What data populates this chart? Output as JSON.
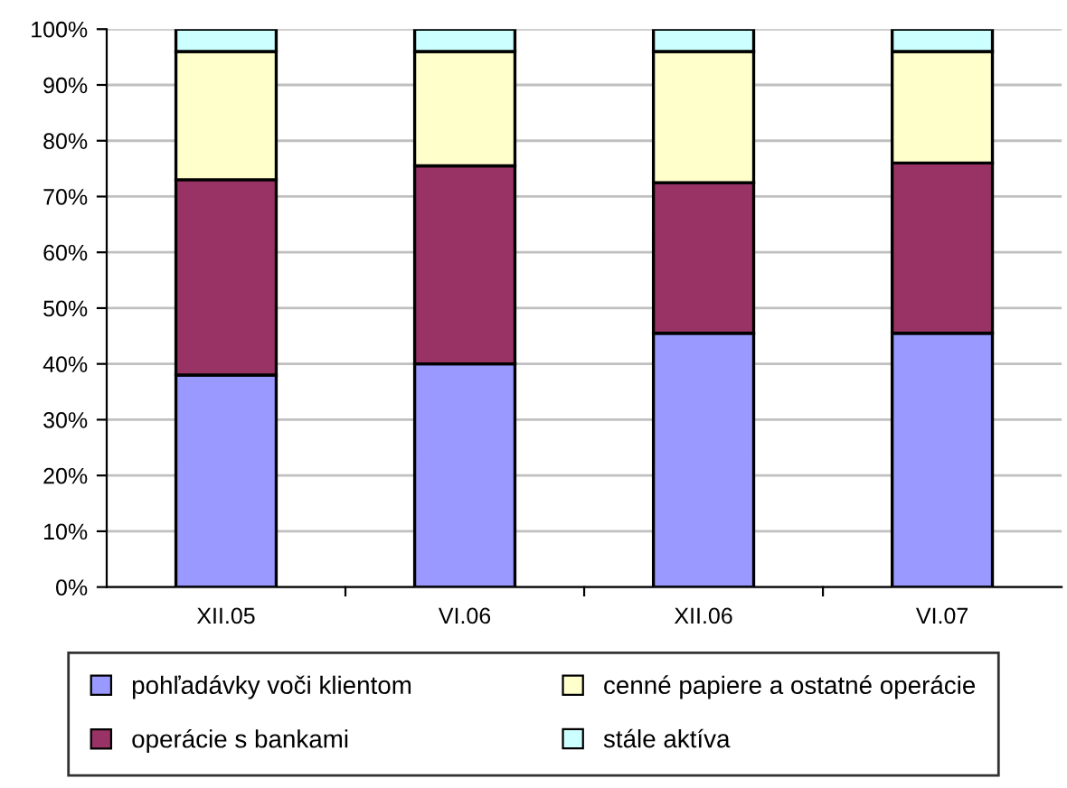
{
  "chart_data": {
    "type": "bar",
    "stacked": true,
    "categories": [
      "XII.05",
      "VI.06",
      "XII.06",
      "VI.07"
    ],
    "series": [
      {
        "name": "pohľadávky voči klientom",
        "color": "#9999ff",
        "values": [
          38,
          40,
          45.5,
          45.5
        ]
      },
      {
        "name": "operácie s bankami",
        "color": "#993366",
        "values": [
          35,
          35.5,
          27,
          30.5
        ]
      },
      {
        "name": "cenné papiere a ostatné operácie",
        "color": "#ffffcc",
        "values": [
          23,
          20.5,
          23.5,
          20
        ]
      },
      {
        "name": "stále aktíva",
        "color": "#ccffff",
        "values": [
          4,
          4,
          4,
          4
        ]
      }
    ],
    "ylim": [
      0,
      100
    ],
    "yticks": [
      {
        "value": 0,
        "label": "0%"
      },
      {
        "value": 10,
        "label": "10%"
      },
      {
        "value": 20,
        "label": "20%"
      },
      {
        "value": 30,
        "label": "30%"
      },
      {
        "value": 40,
        "label": "40%"
      },
      {
        "value": 50,
        "label": "50%"
      },
      {
        "value": 60,
        "label": "60%"
      },
      {
        "value": 70,
        "label": "70%"
      },
      {
        "value": 80,
        "label": "80%"
      },
      {
        "value": 90,
        "label": "90%"
      },
      {
        "value": 100,
        "label": "100%"
      }
    ],
    "grid": "y",
    "legend": "bottom"
  }
}
